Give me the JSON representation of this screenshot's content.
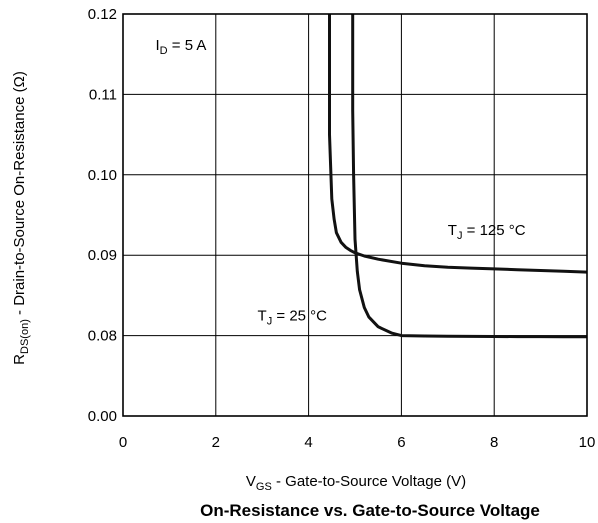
{
  "chart_data": {
    "type": "line",
    "title": "On-Resistance vs. Gate-to-Source Voltage",
    "xlabel": {
      "main": "V",
      "sub": "GS",
      "rest": " - Gate-to-Source Voltage (V)"
    },
    "ylabel": {
      "main": "R",
      "sub": "DS(on)",
      "rest": " - Drain-to-Source On-Resistance (Ω)"
    },
    "xlim": [
      0,
      10
    ],
    "x_ticks": [
      {
        "value": 0,
        "label": "0"
      },
      {
        "value": 2,
        "label": "2"
      },
      {
        "value": 4,
        "label": "4"
      },
      {
        "value": 6,
        "label": "6"
      },
      {
        "value": 8,
        "label": "8"
      },
      {
        "value": 10,
        "label": "10"
      }
    ],
    "y_ticks": [
      {
        "value": 0.0,
        "label": "0.00"
      },
      {
        "value": 0.08,
        "label": "0.08"
      },
      {
        "value": 0.09,
        "label": "0.09"
      },
      {
        "value": 0.1,
        "label": "0.10"
      },
      {
        "value": 0.11,
        "label": "0.11"
      },
      {
        "value": 0.12,
        "label": "0.12"
      }
    ],
    "y_axis_note": "broken axis: 0.00 then 0.08 to 0.12 in equal steps",
    "grid": true,
    "annotations": [
      {
        "main": "I",
        "sub": "D",
        "rest": " = 5 A",
        "x": 0.7,
        "y": 0.1155
      },
      {
        "main": "T",
        "sub": "J",
        "rest": " = 125 °C",
        "x": 7.0,
        "y": 0.0925
      },
      {
        "main": "T",
        "sub": "J",
        "rest": " = 25 °C",
        "x": 2.9,
        "y": 0.0819
      }
    ],
    "series": [
      {
        "name": "T_J = 125 °C",
        "x": [
          4.45,
          4.45,
          4.5,
          4.55,
          4.6,
          4.7,
          4.8,
          4.9,
          5.0,
          5.2,
          5.5,
          6.0,
          6.5,
          7.0,
          7.5,
          8.0,
          8.5,
          9.0,
          9.5,
          10.0
        ],
        "y": [
          0.12,
          0.105,
          0.097,
          0.0945,
          0.0928,
          0.0916,
          0.091,
          0.0906,
          0.0903,
          0.0899,
          0.0895,
          0.089,
          0.0887,
          0.0885,
          0.0884,
          0.0883,
          0.0882,
          0.0881,
          0.088,
          0.0879
        ]
      },
      {
        "name": "T_J = 25 °C",
        "x": [
          4.95,
          4.95,
          4.97,
          5.0,
          5.05,
          5.1,
          5.2,
          5.3,
          5.5,
          5.8,
          6.0,
          6.5,
          7.0,
          7.5,
          8.0,
          8.5,
          9.0,
          9.5,
          10.0
        ],
        "y": [
          0.12,
          0.108,
          0.1,
          0.092,
          0.088,
          0.0857,
          0.0835,
          0.0823,
          0.0811,
          0.0803,
          0.08,
          0.0796,
          0.0793,
          0.0792,
          0.0791,
          0.079,
          0.079,
          0.0789,
          0.0789
        ]
      }
    ]
  }
}
